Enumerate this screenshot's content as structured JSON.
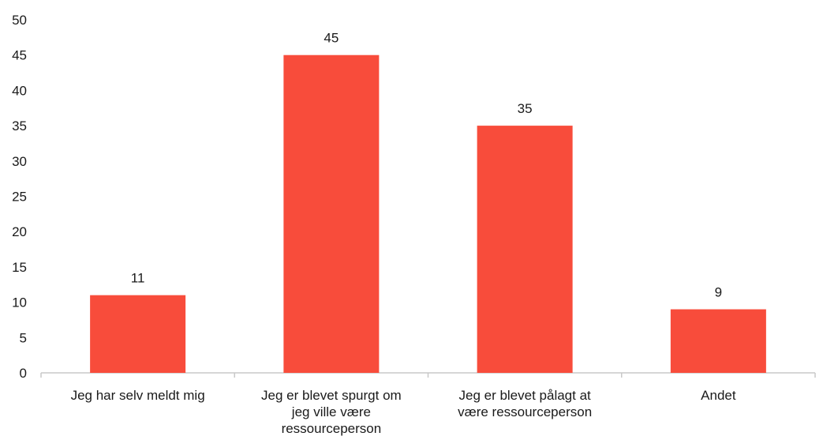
{
  "chart_data": {
    "type": "bar",
    "categories": [
      "Jeg har selv meldt mig",
      "Jeg er blevet spurgt om jeg ville være ressourceperson",
      "Jeg er blevet pålagt at være ressourceperson",
      "Andet"
    ],
    "category_lines": [
      [
        "Jeg har selv meldt mig"
      ],
      [
        "Jeg er blevet spurgt om",
        "jeg ville være",
        "ressourceperson"
      ],
      [
        "Jeg er blevet pålagt at",
        "være ressourceperson"
      ],
      [
        "Andet"
      ]
    ],
    "values": [
      11,
      45,
      35,
      9
    ],
    "data_labels": [
      "11",
      "45",
      "35",
      "9"
    ],
    "y_ticks": [
      "0",
      "5",
      "10",
      "15",
      "20",
      "25",
      "30",
      "35",
      "40",
      "45",
      "50"
    ],
    "ylim": [
      0,
      50
    ],
    "title": "",
    "xlabel": "",
    "ylabel": "",
    "grid": false,
    "legend": "none",
    "colors": {
      "bar": "#f84c3b",
      "axis": "#c8c8c8",
      "text": "#1a1a1a"
    }
  }
}
